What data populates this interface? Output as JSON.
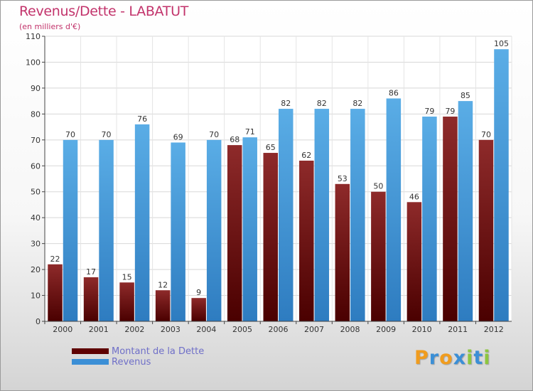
{
  "title": "Revenus/Dette - LABATUT",
  "subtitle": "(en milliers d'€)",
  "colors": {
    "title": "#c2336b",
    "dette": "#6b0d0d",
    "revenus": "#3b8fd6",
    "legend_text": "#6f6fc8"
  },
  "legend": [
    {
      "label": "Montant de la Dette",
      "series": "dette"
    },
    {
      "label": "Revenus",
      "series": "revenus"
    }
  ],
  "logo": {
    "text": "Proxiti",
    "letters": [
      {
        "ch": "P",
        "color": "#f09c1e"
      },
      {
        "ch": "r",
        "color": "#3b8fd6"
      },
      {
        "ch": "o",
        "color": "#f09c1e"
      },
      {
        "ch": "x",
        "color": "#3b8fd6"
      },
      {
        "ch": "i",
        "color": "#8dc63f"
      },
      {
        "ch": "t",
        "color": "#3b8fd6"
      },
      {
        "ch": "i",
        "color": "#8dc63f"
      }
    ]
  },
  "chart_data": {
    "type": "bar",
    "title": "Revenus/Dette - LABATUT",
    "ylabel": "(en milliers d'€)",
    "xlabel": "",
    "ylim": [
      0,
      110
    ],
    "yticks": [
      0,
      10,
      20,
      30,
      40,
      50,
      60,
      70,
      80,
      90,
      100,
      110
    ],
    "grid": true,
    "legend_position": "bottom-left",
    "categories": [
      "2000",
      "2001",
      "2002",
      "2003",
      "2004",
      "2005",
      "2006",
      "2007",
      "2008",
      "2009",
      "2010",
      "2011",
      "2012"
    ],
    "series": [
      {
        "name": "Montant de la Dette",
        "key": "dette",
        "values": [
          22,
          17,
          15,
          12,
          9,
          68,
          65,
          62,
          53,
          50,
          46,
          79,
          70
        ]
      },
      {
        "name": "Revenus",
        "key": "revenus",
        "values": [
          70,
          70,
          76,
          69,
          70,
          71,
          82,
          82,
          82,
          86,
          79,
          85,
          105
        ]
      }
    ]
  }
}
